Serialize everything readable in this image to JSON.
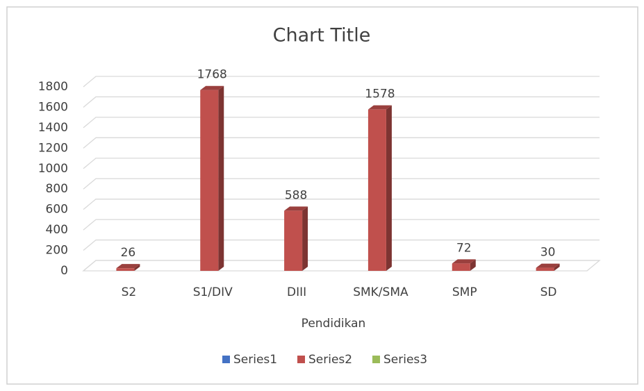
{
  "chart_data": {
    "type": "bar3d",
    "title": "Chart Title",
    "x_label": "Pendidikan",
    "categories": [
      "S2",
      "S1/DIV",
      "DIII",
      "SMK/SMA",
      "SMP",
      "SD"
    ],
    "series": [
      {
        "name": "Series1",
        "color": "#4472c4",
        "values": [
          null,
          null,
          null,
          null,
          null,
          null
        ]
      },
      {
        "name": "Series2",
        "color": "#c0504d",
        "values": [
          26,
          1768,
          588,
          1578,
          72,
          30
        ]
      },
      {
        "name": "Series3",
        "color": "#9bbb59",
        "values": [
          null,
          null,
          null,
          null,
          null,
          null
        ]
      }
    ],
    "ylim": [
      0,
      1800
    ],
    "yticks": [
      0,
      200,
      400,
      600,
      800,
      1000,
      1200,
      1400,
      1600,
      1800
    ],
    "grid": true,
    "legend": "bottom",
    "data_labels": true
  }
}
